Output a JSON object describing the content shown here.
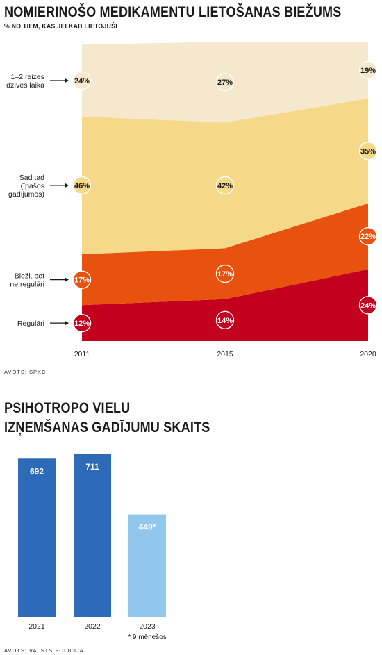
{
  "chart_data": [
    {
      "type": "area",
      "title": "NOMIERINOŠO MEDIKAMENTU LIETOŠANAS BIEŽUMS",
      "subtitle": "% NO TIEM, KAS JELKAD LIETOJUŠI",
      "x": [
        "2011",
        "2015",
        "2020"
      ],
      "ylim": [
        0,
        100
      ],
      "stacked": true,
      "series": [
        {
          "name": "Regulāri",
          "values": [
            12,
            14,
            24
          ],
          "color": "#c4001f",
          "label_color": "#c4001f",
          "label_text_color": "#ffffff"
        },
        {
          "name": "Bieži, bet ne regulāri",
          "values": [
            17,
            17,
            22
          ],
          "color": "#e8510e",
          "label_color": "#e8510e",
          "label_text_color": "#ffffff"
        },
        {
          "name": "Šad tad (īpašos gadījumos)",
          "values": [
            46,
            42,
            35
          ],
          "color": "#f5d888",
          "label_color": "#f5d888",
          "label_text_color": "#1a1a1a"
        },
        {
          "name": "1–2 reizes dzīves laikā",
          "values": [
            24,
            27,
            19
          ],
          "color": "#f5e8cc",
          "label_color": "#f5e8cc",
          "label_text_color": "#1a1a1a"
        }
      ],
      "legend_lines": [
        [
          "Regulāri"
        ],
        [
          "Bieži, bet",
          "ne regulāri"
        ],
        [
          "Šad tad",
          "(īpašos",
          "gadījumos)"
        ],
        [
          "1–2 reizes",
          "dzīves laikā"
        ]
      ],
      "label_suffix": "%",
      "grid": false
    },
    {
      "type": "bar",
      "title": "PSIHOTROPO VIELU IZŅEMŠANAS GADĪJUMU SKAITS",
      "title_lines": [
        "PSIHOTROPO VIELU",
        "IZŅEMŠANAS GADĪJUMU SKAITS"
      ],
      "categories": [
        "2021",
        "2022",
        "2023"
      ],
      "values": [
        692,
        711,
        449
      ],
      "value_labels": [
        "692",
        "711",
        "449*"
      ],
      "category_notes": [
        "",
        "",
        "* 9 mēnešos"
      ],
      "colors": [
        "#2d6bb8",
        "#2d6bb8",
        "#91c7ec"
      ],
      "ylim": [
        0,
        711
      ]
    }
  ],
  "sources": {
    "chart1": "AVOTS: SPKC",
    "chart2": "AVOTS: VALSTS POLICIJA"
  }
}
